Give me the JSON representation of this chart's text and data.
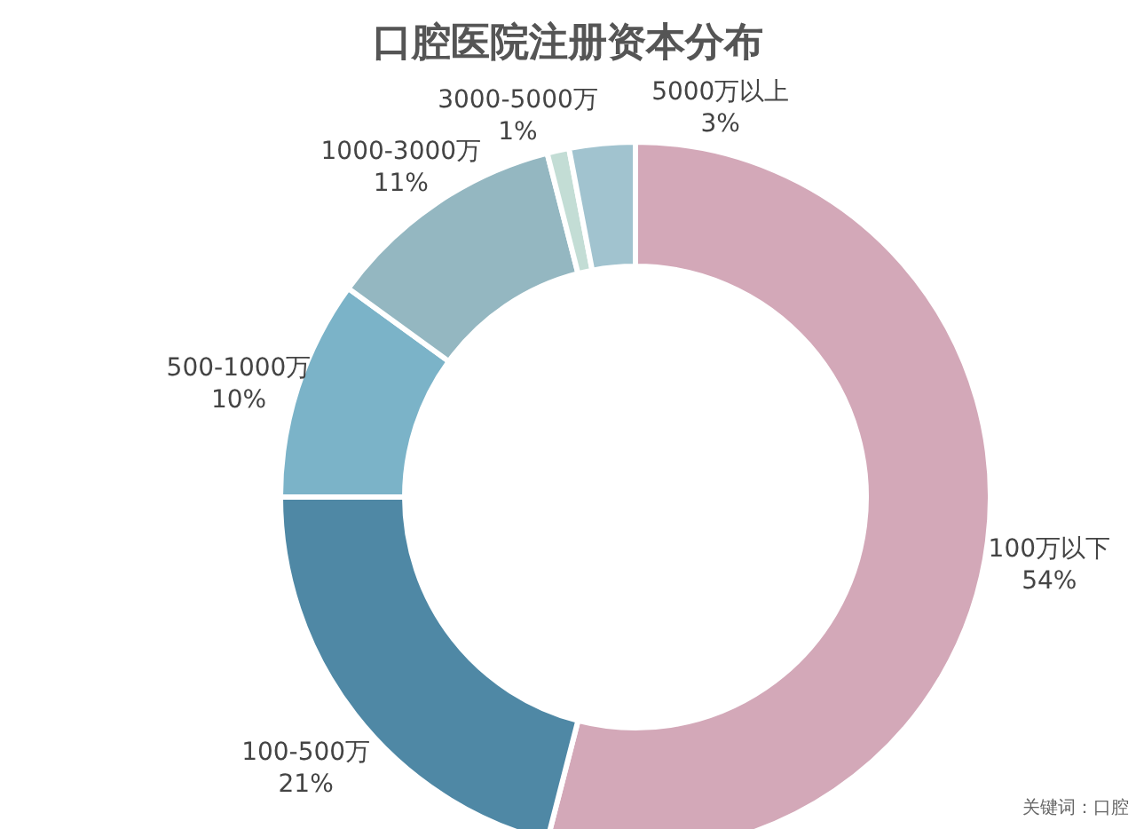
{
  "chart_data": {
    "type": "donut",
    "title": "口腔医院注册资本分布",
    "categories": [
      "100万以下",
      "100-500万",
      "500-1000万",
      "1000-3000万",
      "3000-5000万",
      "5000万以上"
    ],
    "values": [
      54,
      21,
      10,
      11,
      1,
      3
    ],
    "value_labels": [
      "54%",
      "21%",
      "10%",
      "11%",
      "1%",
      "3%"
    ],
    "colors": [
      "#d3a8b8",
      "#4f88a5",
      "#7bb3c8",
      "#94b7c1",
      "#c3ddd5",
      "#a1c3cf"
    ],
    "legend": false,
    "annotations": [
      "关键词：口腔"
    ]
  }
}
